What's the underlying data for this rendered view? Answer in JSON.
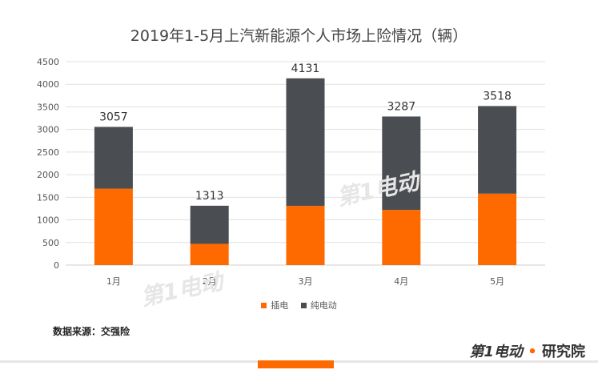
{
  "title": "2019年1-5月上汽新能源个人市场上险情况（辆）",
  "source": "数据来源：交强险",
  "watermark": "第1电动",
  "brand": {
    "mark": "第1电动",
    "dot": "•",
    "name": "研究院"
  },
  "colors": {
    "plug_in": "#ff6a00",
    "pure_ev": "#4a4e52",
    "grid": "#e0e0e0"
  },
  "chart_data": {
    "type": "bar",
    "stacked": true,
    "categories": [
      "1月",
      "2月",
      "3月",
      "4月",
      "5月"
    ],
    "series": [
      {
        "name": "插电",
        "values": [
          1690,
          470,
          1310,
          1220,
          1580
        ]
      },
      {
        "name": "纯电动",
        "values": [
          1367,
          843,
          2821,
          2067,
          1938
        ]
      }
    ],
    "totals": [
      3057,
      1313,
      4131,
      3287,
      3518
    ],
    "ylim": [
      0,
      4500
    ],
    "yticks": [
      0,
      500,
      1000,
      1500,
      2000,
      2500,
      3000,
      3500,
      4000,
      4500
    ],
    "grid": true,
    "legend": "bottom"
  }
}
